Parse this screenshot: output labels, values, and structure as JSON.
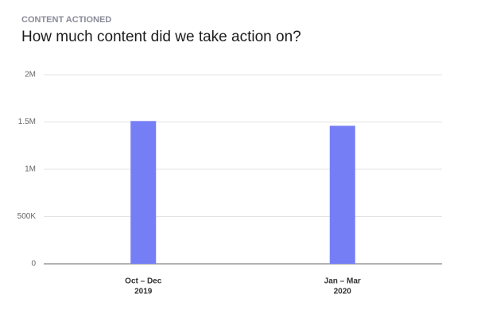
{
  "chart_data": {
    "type": "bar",
    "eyebrow": "CONTENT ACTIONED",
    "title": "How much content did we take action on?",
    "categories": [
      [
        "Oct – Dec",
        "2019"
      ],
      [
        "Jan – Mar",
        "2020"
      ]
    ],
    "values": [
      1510000,
      1460000
    ],
    "color": "#767ef6",
    "ylim": [
      0,
      2000000
    ],
    "yticks": [
      0,
      {
        "value": 500000,
        "label": "500K"
      },
      {
        "value": 1000000,
        "label": "1M"
      },
      {
        "value": 1500000,
        "label": "1.5M"
      },
      {
        "value": 2000000,
        "label": "2M"
      }
    ],
    "grid": true
  }
}
